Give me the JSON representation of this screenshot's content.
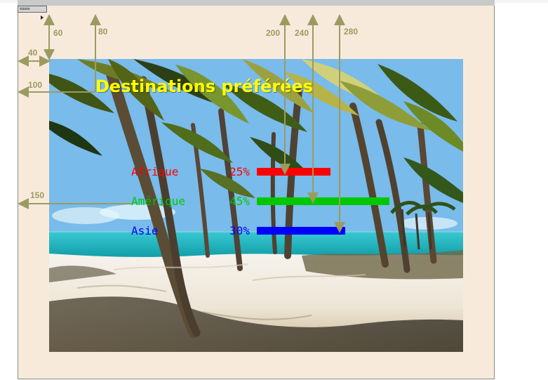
{
  "scene": {
    "title": "Destinations préférées",
    "title_color": "#ffff00",
    "legend": [
      {
        "name": "Afrique",
        "percent_label": "25%",
        "color": "#ff0000",
        "value": 25
      },
      {
        "name": "Amérique",
        "percent_label": "45%",
        "color": "#00c800",
        "value": 45
      },
      {
        "name": "Asie",
        "percent_label": "30%",
        "color": "#0000ff",
        "value": 30
      }
    ]
  },
  "annotations": {
    "labels": {
      "v60": "60",
      "v80": "80",
      "v200": "200",
      "v240": "240",
      "v280": "280",
      "h40": "40",
      "h100": "100",
      "h150": "150"
    },
    "color": "#9b9b61"
  },
  "window": {
    "tab_label": "≡≡≡≡"
  }
}
